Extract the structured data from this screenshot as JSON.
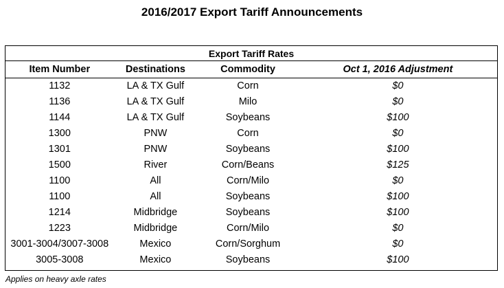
{
  "title": "2016/2017 Export Tariff Announcements",
  "table": {
    "caption": "Export Tariff Rates",
    "headers": [
      "Item Number",
      "Destinations",
      "Commodity",
      "Oct 1, 2016 Adjustment"
    ],
    "rows": [
      [
        "1132",
        "LA & TX Gulf",
        "Corn",
        "$0"
      ],
      [
        "1136",
        "LA & TX Gulf",
        "Milo",
        "$0"
      ],
      [
        "1144",
        "LA & TX Gulf",
        "Soybeans",
        "$100"
      ],
      [
        "1300",
        "PNW",
        "Corn",
        "$0"
      ],
      [
        "1301",
        "PNW",
        "Soybeans",
        "$100"
      ],
      [
        "1500",
        "River",
        "Corn/Beans",
        "$125"
      ],
      [
        "1100",
        "All",
        "Corn/Milo",
        "$0"
      ],
      [
        "1100",
        "All",
        "Soybeans",
        "$100"
      ],
      [
        "1214",
        "Midbridge",
        "Soybeans",
        "$100"
      ],
      [
        "1223",
        "Midbridge",
        "Corn/Milo",
        "$0"
      ],
      [
        "3001-3004/3007-3008",
        "Mexico",
        "Corn/Sorghum",
        "$0"
      ],
      [
        "3005-3008",
        "Mexico",
        "Soybeans",
        "$100"
      ]
    ]
  },
  "footnote": "Applies on heavy axle rates"
}
